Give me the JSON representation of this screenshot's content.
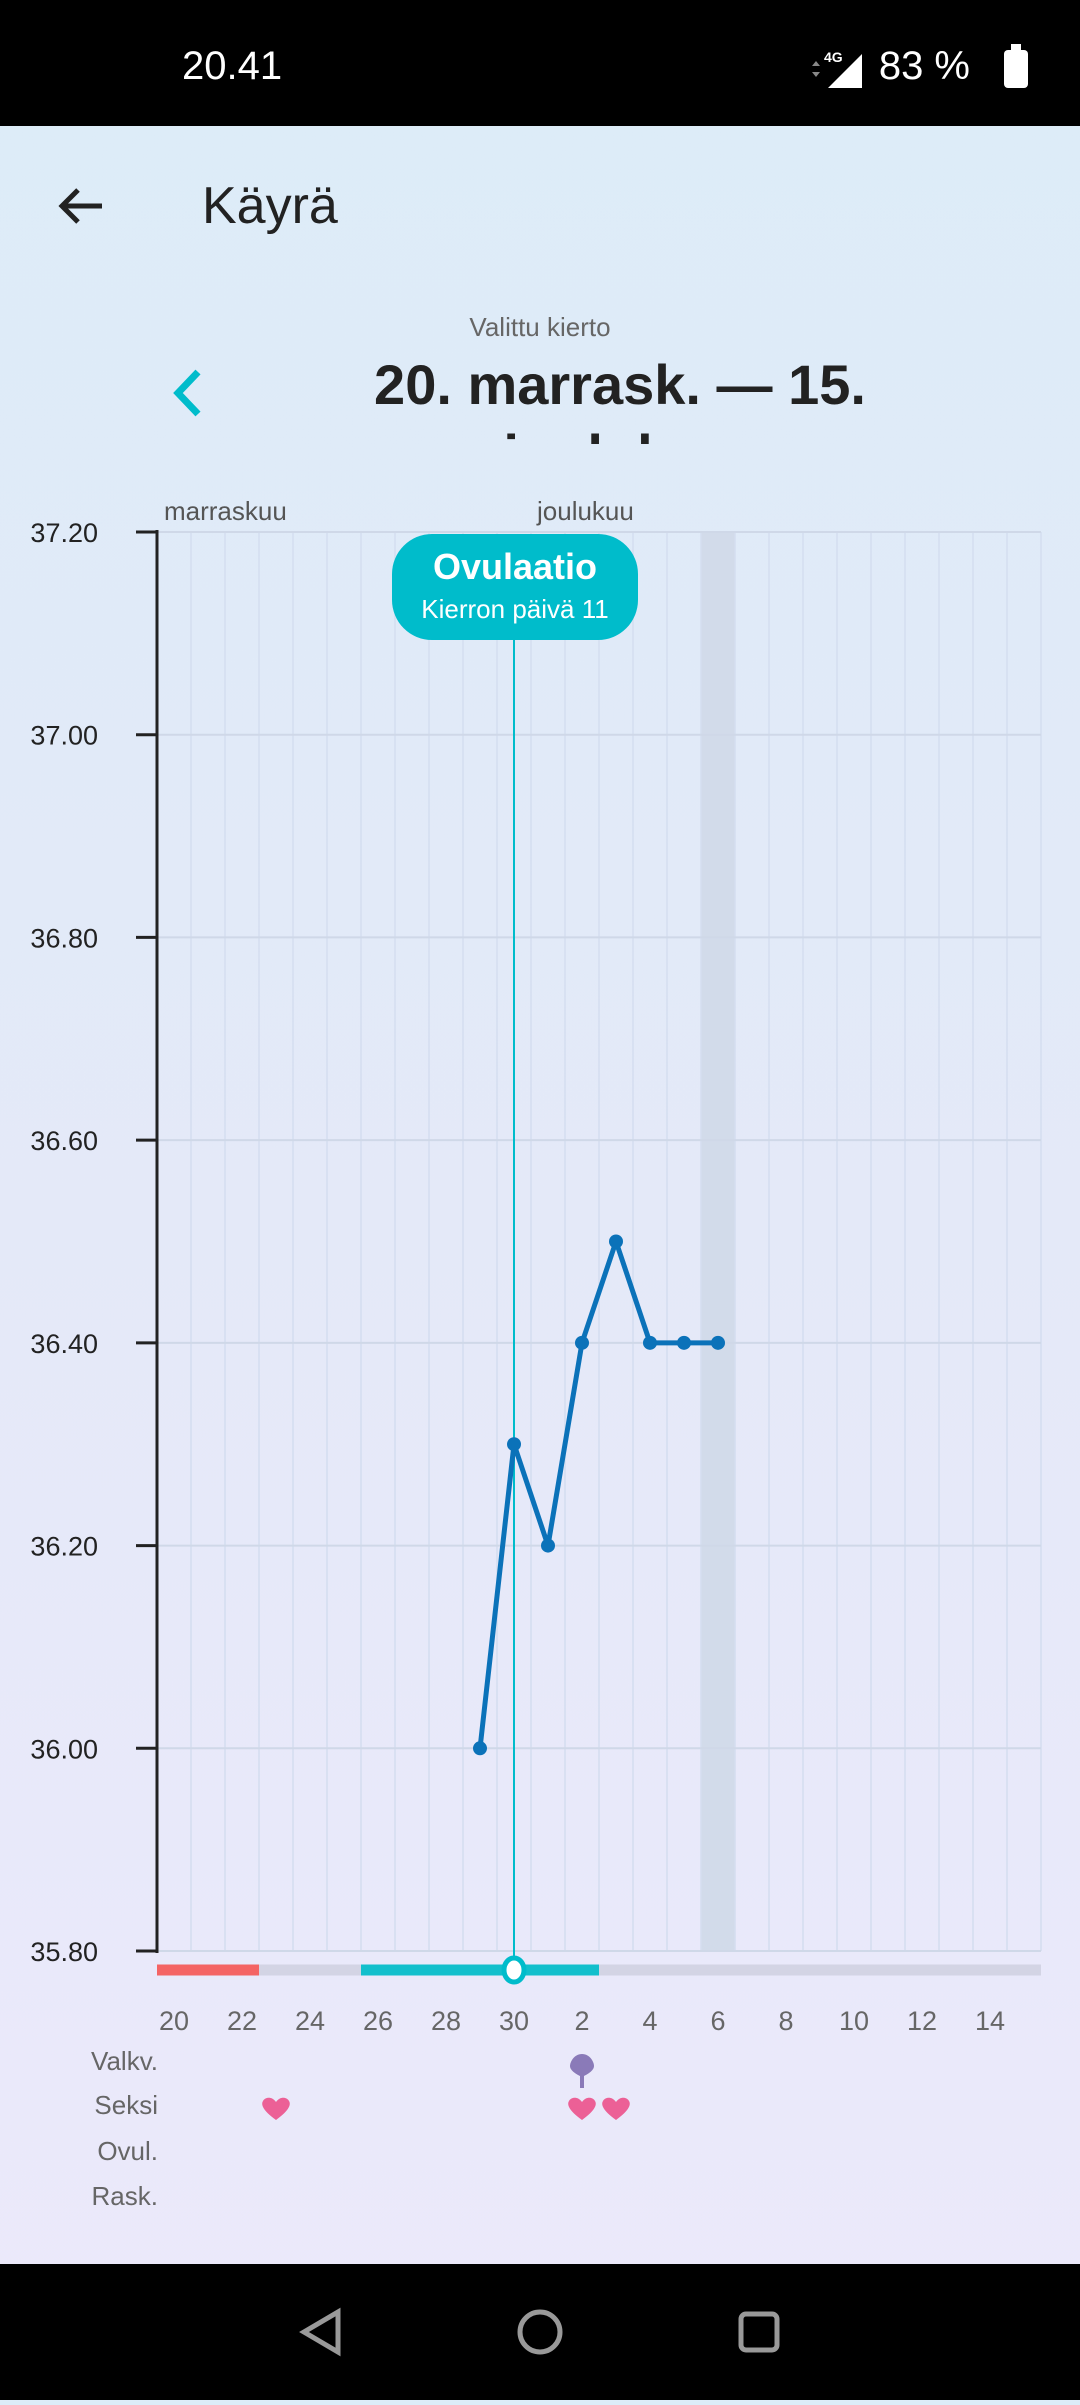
{
  "status_bar": {
    "time": "20.41",
    "network": "4G",
    "battery": "83 %"
  },
  "header": {
    "title": "Käyrä"
  },
  "cycle": {
    "label": "Valittu kierto",
    "range_line1": "20. marrask. — 15.",
    "range_line2": "joulukuu"
  },
  "colors": {
    "line": "#0b72b9",
    "ovulation": "#00bccb",
    "period": "#f46464",
    "fertile": "#12bfcc",
    "heart": "#ec6096",
    "test": "#8a7ab8"
  },
  "chart_data": {
    "type": "line",
    "months": [
      "marraskuu",
      "joulukuu"
    ],
    "x_days": [
      20,
      21,
      22,
      23,
      24,
      25,
      26,
      27,
      28,
      29,
      30,
      1,
      2,
      3,
      4,
      5,
      6,
      7,
      8,
      9,
      10,
      11,
      12,
      13,
      14,
      15
    ],
    "x_tick_labels": [
      "20",
      "22",
      "24",
      "26",
      "28",
      "30",
      "2",
      "4",
      "6",
      "8",
      "10",
      "12",
      "14"
    ],
    "y_ticks": [
      "37.20",
      "37.00",
      "36.80",
      "36.60",
      "36.40",
      "36.20",
      "36.00",
      "35.80"
    ],
    "ylim": [
      35.8,
      37.2
    ],
    "series": [
      {
        "points": [
          [
            "29",
            36.0
          ],
          [
            "30",
            36.3
          ],
          [
            "1",
            36.2
          ],
          [
            "2",
            36.4
          ],
          [
            "3",
            36.5
          ],
          [
            "4",
            36.4
          ],
          [
            "5",
            36.4
          ],
          [
            "6",
            36.4
          ]
        ]
      }
    ],
    "ovulation": {
      "day": "30",
      "title": "Ovulaatio",
      "subtitle": "Kierron päivä 11"
    },
    "highlighted_day": "6",
    "period_days": [
      "20",
      "21",
      "22"
    ],
    "fertile_days": [
      "26",
      "27",
      "28",
      "29",
      "30",
      "1",
      "2"
    ],
    "grid": true
  },
  "tracks": {
    "labels": [
      "Valkv.",
      "Seksi",
      "Ovul.",
      "Rask."
    ],
    "valkv_days": [
      "2"
    ],
    "seksi_days": [
      "23",
      "2",
      "3"
    ]
  }
}
